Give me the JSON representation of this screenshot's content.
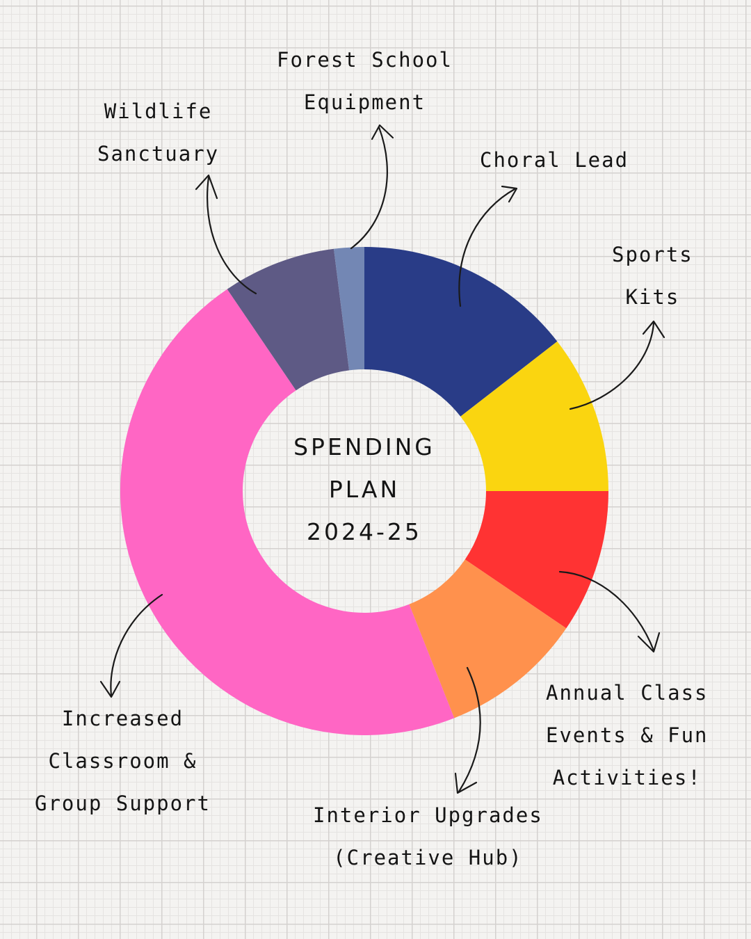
{
  "chart_data": {
    "type": "pie",
    "donut": true,
    "center_text": [
      "SPENDING",
      "PLAN",
      "2024-25"
    ],
    "slices": [
      {
        "label": [
          "Choral Lead"
        ],
        "value": 14.5,
        "color": "#293c87"
      },
      {
        "label": [
          "Sports",
          "Kits"
        ],
        "value": 10.5,
        "color": "#fad510"
      },
      {
        "label": [
          "Annual Class",
          "Events & Fun",
          "Activities!"
        ],
        "value": 9.5,
        "color": "#ff3333"
      },
      {
        "label": [
          "Interior Upgrades",
          "(Creative Hub)"
        ],
        "value": 9.5,
        "color": "#ff914d"
      },
      {
        "label": [
          "Increased",
          "Classroom &",
          "Group Support"
        ],
        "value": 46.5,
        "color": "#ff66c4"
      },
      {
        "label": [
          "Wildlife",
          "Sanctuary"
        ],
        "value": 7.5,
        "color": "#5e5a85"
      },
      {
        "label": [
          "Forest School",
          "Equipment"
        ],
        "value": 2.0,
        "color": "#7387b4"
      }
    ]
  }
}
